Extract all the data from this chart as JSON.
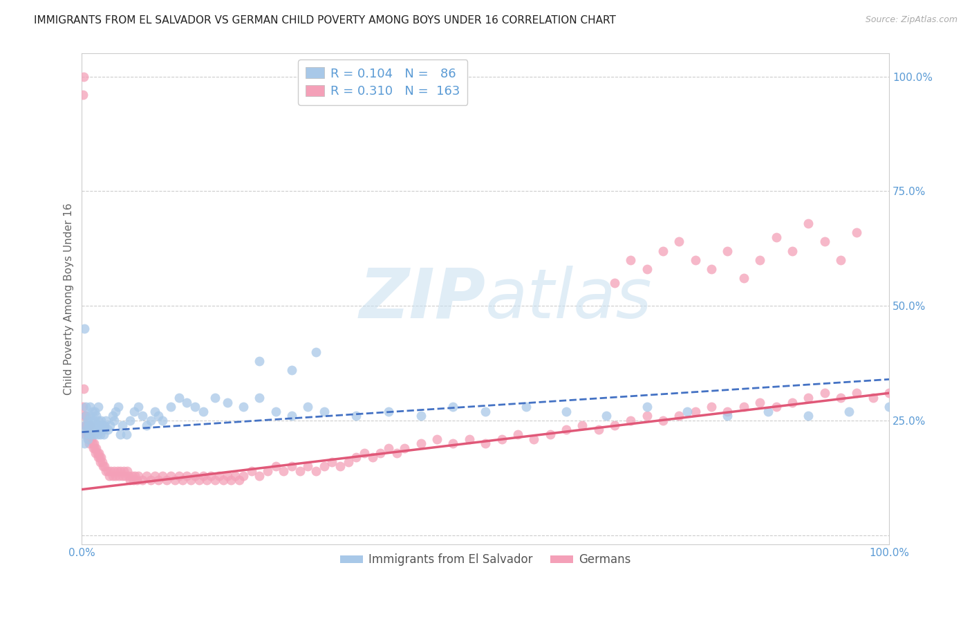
{
  "title": "IMMIGRANTS FROM EL SALVADOR VS GERMAN CHILD POVERTY AMONG BOYS UNDER 16 CORRELATION CHART",
  "source": "Source: ZipAtlas.com",
  "ylabel": "Child Poverty Among Boys Under 16",
  "xlim": [
    0,
    1.0
  ],
  "ylim": [
    -0.02,
    1.05
  ],
  "yticks": [
    0.0,
    0.25,
    0.5,
    0.75,
    1.0
  ],
  "ytick_labels": [
    "",
    "25.0%",
    "50.0%",
    "75.0%",
    "100.0%"
  ],
  "xticks": [
    0.0,
    0.25,
    0.5,
    0.75,
    1.0
  ],
  "xtick_labels": [
    "0.0%",
    "",
    "",
    "",
    "100.0%"
  ],
  "legend_entries": [
    {
      "label": "Immigrants from El Salvador",
      "color": "#a8c8e8",
      "R": "0.104",
      "N": "86"
    },
    {
      "label": "Germans",
      "color": "#f4a0b8",
      "R": "0.310",
      "N": "163"
    }
  ],
  "watermark_zip": "ZIP",
  "watermark_atlas": "atlas",
  "blue_color": "#a8c8e8",
  "pink_color": "#f4a0b8",
  "blue_line_color": "#4472c4",
  "pink_line_color": "#e05878",
  "grid_color": "#cccccc",
  "tick_color": "#5b9bd5",
  "title_fontsize": 11,
  "ylabel_fontsize": 11,
  "source_fontsize": 9,
  "blue_scatter_x": [
    0.002,
    0.003,
    0.004,
    0.005,
    0.005,
    0.006,
    0.007,
    0.007,
    0.008,
    0.008,
    0.009,
    0.01,
    0.01,
    0.011,
    0.012,
    0.012,
    0.013,
    0.014,
    0.015,
    0.015,
    0.016,
    0.017,
    0.018,
    0.018,
    0.019,
    0.02,
    0.02,
    0.021,
    0.022,
    0.023,
    0.024,
    0.025,
    0.026,
    0.027,
    0.028,
    0.03,
    0.032,
    0.035,
    0.038,
    0.04,
    0.042,
    0.045,
    0.048,
    0.05,
    0.055,
    0.06,
    0.065,
    0.07,
    0.075,
    0.08,
    0.085,
    0.09,
    0.095,
    0.1,
    0.11,
    0.12,
    0.13,
    0.14,
    0.15,
    0.165,
    0.18,
    0.2,
    0.22,
    0.24,
    0.26,
    0.28,
    0.3,
    0.34,
    0.38,
    0.42,
    0.46,
    0.5,
    0.55,
    0.6,
    0.65,
    0.7,
    0.75,
    0.8,
    0.85,
    0.9,
    0.95,
    1.0,
    0.003,
    0.22,
    0.26,
    0.29
  ],
  "blue_scatter_y": [
    0.22,
    0.2,
    0.24,
    0.26,
    0.28,
    0.23,
    0.21,
    0.25,
    0.22,
    0.24,
    0.23,
    0.26,
    0.28,
    0.24,
    0.22,
    0.25,
    0.27,
    0.23,
    0.22,
    0.25,
    0.27,
    0.24,
    0.23,
    0.26,
    0.22,
    0.25,
    0.28,
    0.24,
    0.23,
    0.22,
    0.25,
    0.24,
    0.23,
    0.22,
    0.24,
    0.25,
    0.23,
    0.24,
    0.26,
    0.25,
    0.27,
    0.28,
    0.22,
    0.24,
    0.22,
    0.25,
    0.27,
    0.28,
    0.26,
    0.24,
    0.25,
    0.27,
    0.26,
    0.25,
    0.28,
    0.3,
    0.29,
    0.28,
    0.27,
    0.3,
    0.29,
    0.28,
    0.3,
    0.27,
    0.26,
    0.28,
    0.27,
    0.26,
    0.27,
    0.26,
    0.28,
    0.27,
    0.28,
    0.27,
    0.26,
    0.28,
    0.27,
    0.26,
    0.27,
    0.26,
    0.27,
    0.28,
    0.45,
    0.38,
    0.36,
    0.4
  ],
  "pink_scatter_x": [
    0.001,
    0.002,
    0.003,
    0.004,
    0.005,
    0.005,
    0.006,
    0.007,
    0.008,
    0.009,
    0.01,
    0.01,
    0.011,
    0.012,
    0.013,
    0.014,
    0.015,
    0.016,
    0.017,
    0.018,
    0.019,
    0.02,
    0.021,
    0.022,
    0.023,
    0.024,
    0.025,
    0.026,
    0.028,
    0.03,
    0.032,
    0.034,
    0.036,
    0.038,
    0.04,
    0.042,
    0.044,
    0.046,
    0.048,
    0.05,
    0.052,
    0.054,
    0.056,
    0.058,
    0.06,
    0.062,
    0.064,
    0.066,
    0.068,
    0.07,
    0.075,
    0.08,
    0.085,
    0.09,
    0.095,
    0.1,
    0.105,
    0.11,
    0.115,
    0.12,
    0.125,
    0.13,
    0.135,
    0.14,
    0.145,
    0.15,
    0.155,
    0.16,
    0.165,
    0.17,
    0.175,
    0.18,
    0.185,
    0.19,
    0.195,
    0.2,
    0.21,
    0.22,
    0.23,
    0.24,
    0.25,
    0.26,
    0.27,
    0.28,
    0.29,
    0.3,
    0.31,
    0.32,
    0.33,
    0.34,
    0.35,
    0.36,
    0.37,
    0.38,
    0.39,
    0.4,
    0.42,
    0.44,
    0.46,
    0.48,
    0.5,
    0.52,
    0.54,
    0.56,
    0.58,
    0.6,
    0.62,
    0.64,
    0.66,
    0.68,
    0.7,
    0.72,
    0.74,
    0.76,
    0.78,
    0.8,
    0.82,
    0.84,
    0.86,
    0.88,
    0.9,
    0.92,
    0.94,
    0.96,
    0.98,
    1.0,
    0.66,
    0.68,
    0.7,
    0.72,
    0.74,
    0.76,
    0.78,
    0.8,
    0.82,
    0.84,
    0.86,
    0.88,
    0.9,
    0.92,
    0.94,
    0.96,
    0.001,
    0.002
  ],
  "pink_scatter_y": [
    0.28,
    0.32,
    0.26,
    0.24,
    0.22,
    0.26,
    0.24,
    0.22,
    0.21,
    0.2,
    0.21,
    0.24,
    0.22,
    0.21,
    0.2,
    0.19,
    0.2,
    0.19,
    0.18,
    0.19,
    0.18,
    0.17,
    0.18,
    0.17,
    0.16,
    0.17,
    0.16,
    0.15,
    0.15,
    0.14,
    0.14,
    0.13,
    0.14,
    0.13,
    0.14,
    0.13,
    0.14,
    0.13,
    0.14,
    0.13,
    0.14,
    0.13,
    0.14,
    0.13,
    0.12,
    0.13,
    0.12,
    0.13,
    0.12,
    0.13,
    0.12,
    0.13,
    0.12,
    0.13,
    0.12,
    0.13,
    0.12,
    0.13,
    0.12,
    0.13,
    0.12,
    0.13,
    0.12,
    0.13,
    0.12,
    0.13,
    0.12,
    0.13,
    0.12,
    0.13,
    0.12,
    0.13,
    0.12,
    0.13,
    0.12,
    0.13,
    0.14,
    0.13,
    0.14,
    0.15,
    0.14,
    0.15,
    0.14,
    0.15,
    0.14,
    0.15,
    0.16,
    0.15,
    0.16,
    0.17,
    0.18,
    0.17,
    0.18,
    0.19,
    0.18,
    0.19,
    0.2,
    0.21,
    0.2,
    0.21,
    0.2,
    0.21,
    0.22,
    0.21,
    0.22,
    0.23,
    0.24,
    0.23,
    0.24,
    0.25,
    0.26,
    0.25,
    0.26,
    0.27,
    0.28,
    0.27,
    0.28,
    0.29,
    0.28,
    0.29,
    0.3,
    0.31,
    0.3,
    0.31,
    0.3,
    0.31,
    0.55,
    0.6,
    0.58,
    0.62,
    0.64,
    0.6,
    0.58,
    0.62,
    0.56,
    0.6,
    0.65,
    0.62,
    0.68,
    0.64,
    0.6,
    0.66,
    0.96,
    1.0
  ],
  "blue_line_x": [
    0.0,
    1.0
  ],
  "blue_line_y": [
    0.225,
    0.34
  ],
  "pink_line_x": [
    0.0,
    1.0
  ],
  "pink_line_y": [
    0.1,
    0.31
  ]
}
